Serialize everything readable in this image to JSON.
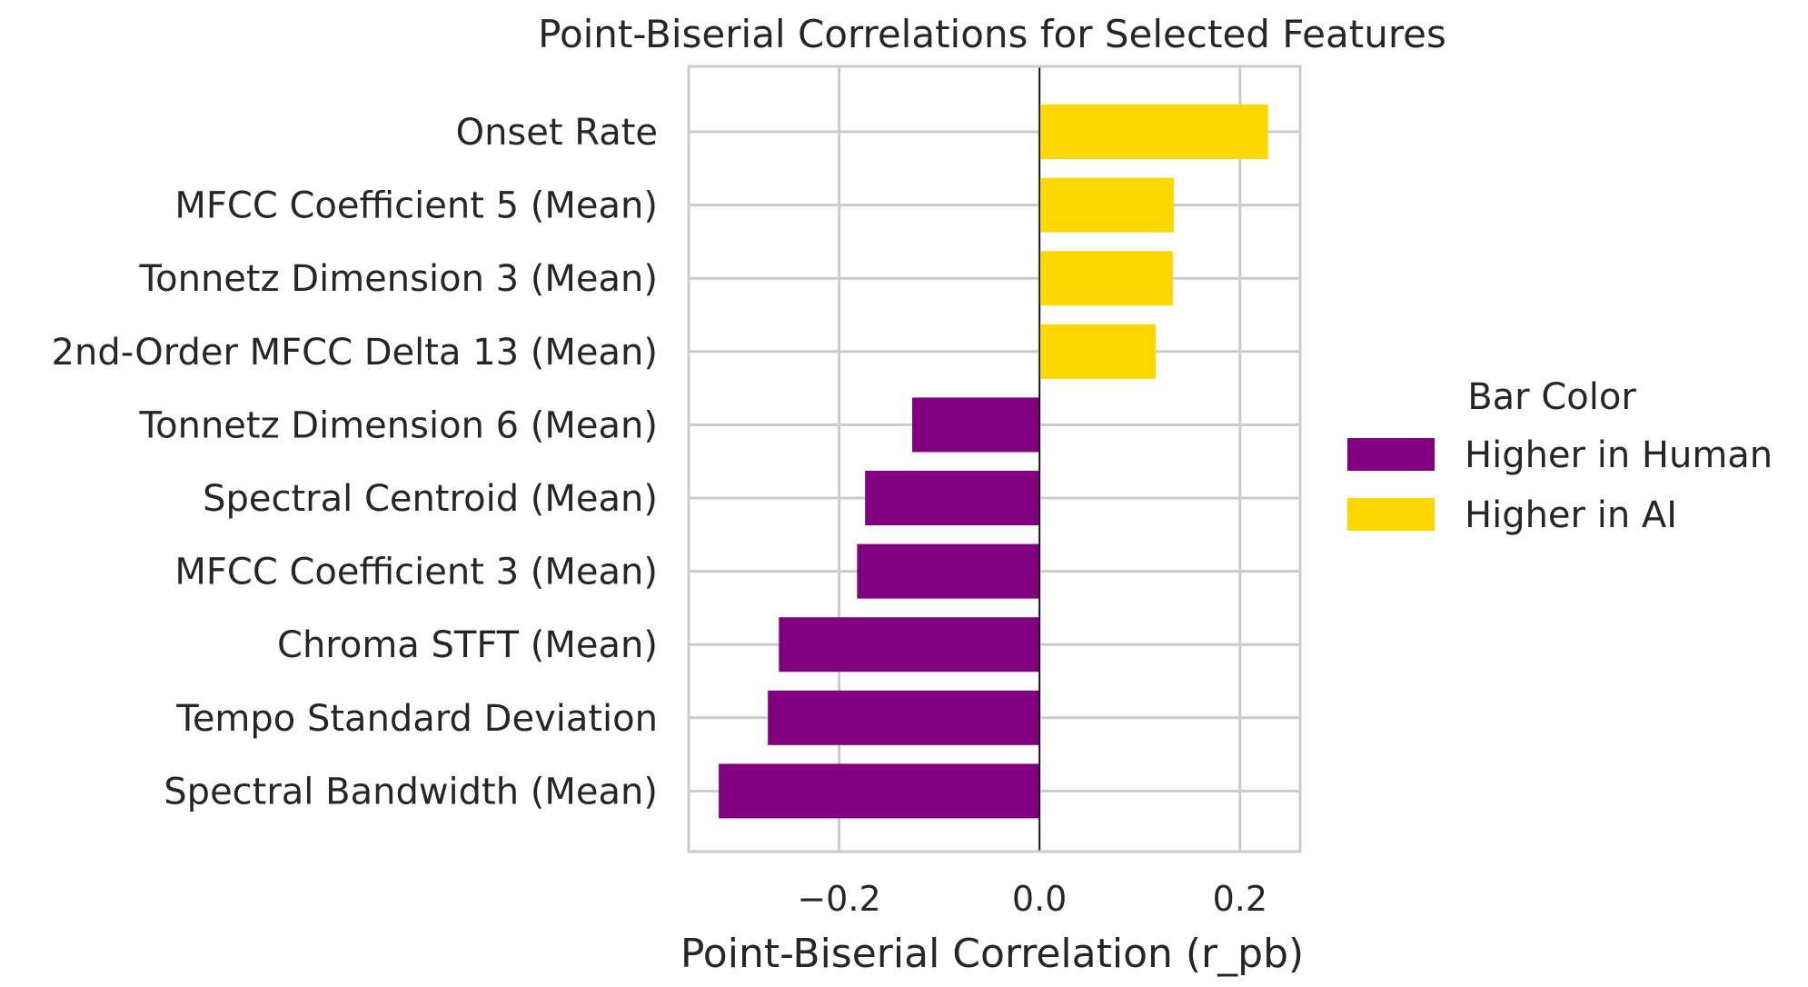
{
  "chart_data": {
    "type": "bar",
    "orientation": "horizontal",
    "title": "Point-Biserial Correlations for Selected Features",
    "xlabel": "Point-Biserial Correlation (r_pb)",
    "ylabel": "",
    "xlim": [
      -0.35,
      0.26
    ],
    "xticks": [
      -0.2,
      0.0,
      0.2
    ],
    "xtick_labels": [
      "−0.2",
      "0.0",
      "0.2"
    ],
    "grid": true,
    "categories": [
      "Onset Rate",
      "MFCC Coefficient 5 (Mean)",
      "Tonnetz Dimension 3 (Mean)",
      "2nd-Order MFCC Delta 13 (Mean)",
      "Tonnetz Dimension 6 (Mean)",
      "Spectral Centroid (Mean)",
      "MFCC Coefficient 3 (Mean)",
      "Chroma STFT (Mean)",
      "Tempo Standard Deviation",
      "Spectral Bandwidth (Mean)"
    ],
    "values": [
      0.228,
      0.134,
      0.133,
      0.116,
      -0.127,
      -0.174,
      -0.182,
      -0.26,
      -0.271,
      -0.32
    ],
    "colors": {
      "positive": "#FFD700",
      "negative": "#800080"
    },
    "legend": {
      "title": "Bar Color",
      "placement": "center-right",
      "entries": [
        {
          "label": "Higher in Human",
          "color": "#800080"
        },
        {
          "label": "Higher in AI",
          "color": "#FFD700"
        }
      ]
    }
  }
}
